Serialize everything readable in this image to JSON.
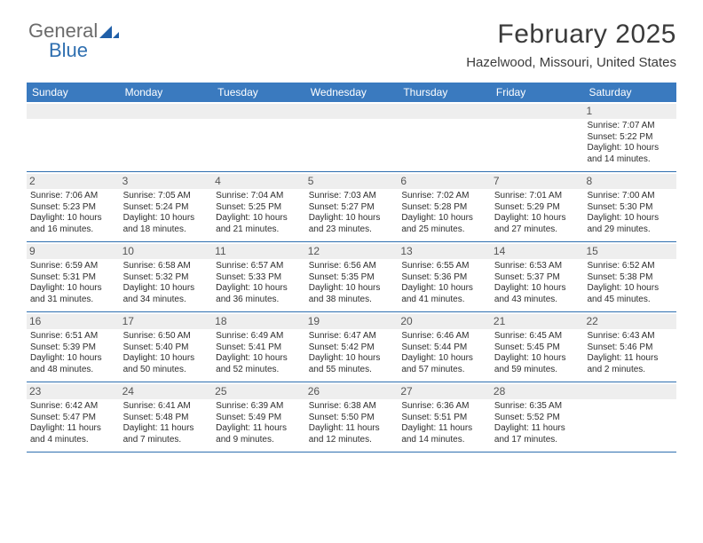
{
  "logo": {
    "part1": "General",
    "part2": "Blue"
  },
  "title": "February 2025",
  "location": "Hazelwood, Missouri, United States",
  "colors": {
    "header_bg": "#3a7abf",
    "header_text": "#ffffff",
    "daynum_bg": "#eeeeee",
    "week_border": "#2f6fb0",
    "logo_gray": "#6b6b6b",
    "logo_blue": "#2f6fb0"
  },
  "days_of_week": [
    "Sunday",
    "Monday",
    "Tuesday",
    "Wednesday",
    "Thursday",
    "Friday",
    "Saturday"
  ],
  "weeks": [
    [
      null,
      null,
      null,
      null,
      null,
      null,
      {
        "n": "1",
        "sunrise": "Sunrise: 7:07 AM",
        "sunset": "Sunset: 5:22 PM",
        "daylight": "Daylight: 10 hours and 14 minutes."
      }
    ],
    [
      {
        "n": "2",
        "sunrise": "Sunrise: 7:06 AM",
        "sunset": "Sunset: 5:23 PM",
        "daylight": "Daylight: 10 hours and 16 minutes."
      },
      {
        "n": "3",
        "sunrise": "Sunrise: 7:05 AM",
        "sunset": "Sunset: 5:24 PM",
        "daylight": "Daylight: 10 hours and 18 minutes."
      },
      {
        "n": "4",
        "sunrise": "Sunrise: 7:04 AM",
        "sunset": "Sunset: 5:25 PM",
        "daylight": "Daylight: 10 hours and 21 minutes."
      },
      {
        "n": "5",
        "sunrise": "Sunrise: 7:03 AM",
        "sunset": "Sunset: 5:27 PM",
        "daylight": "Daylight: 10 hours and 23 minutes."
      },
      {
        "n": "6",
        "sunrise": "Sunrise: 7:02 AM",
        "sunset": "Sunset: 5:28 PM",
        "daylight": "Daylight: 10 hours and 25 minutes."
      },
      {
        "n": "7",
        "sunrise": "Sunrise: 7:01 AM",
        "sunset": "Sunset: 5:29 PM",
        "daylight": "Daylight: 10 hours and 27 minutes."
      },
      {
        "n": "8",
        "sunrise": "Sunrise: 7:00 AM",
        "sunset": "Sunset: 5:30 PM",
        "daylight": "Daylight: 10 hours and 29 minutes."
      }
    ],
    [
      {
        "n": "9",
        "sunrise": "Sunrise: 6:59 AM",
        "sunset": "Sunset: 5:31 PM",
        "daylight": "Daylight: 10 hours and 31 minutes."
      },
      {
        "n": "10",
        "sunrise": "Sunrise: 6:58 AM",
        "sunset": "Sunset: 5:32 PM",
        "daylight": "Daylight: 10 hours and 34 minutes."
      },
      {
        "n": "11",
        "sunrise": "Sunrise: 6:57 AM",
        "sunset": "Sunset: 5:33 PM",
        "daylight": "Daylight: 10 hours and 36 minutes."
      },
      {
        "n": "12",
        "sunrise": "Sunrise: 6:56 AM",
        "sunset": "Sunset: 5:35 PM",
        "daylight": "Daylight: 10 hours and 38 minutes."
      },
      {
        "n": "13",
        "sunrise": "Sunrise: 6:55 AM",
        "sunset": "Sunset: 5:36 PM",
        "daylight": "Daylight: 10 hours and 41 minutes."
      },
      {
        "n": "14",
        "sunrise": "Sunrise: 6:53 AM",
        "sunset": "Sunset: 5:37 PM",
        "daylight": "Daylight: 10 hours and 43 minutes."
      },
      {
        "n": "15",
        "sunrise": "Sunrise: 6:52 AM",
        "sunset": "Sunset: 5:38 PM",
        "daylight": "Daylight: 10 hours and 45 minutes."
      }
    ],
    [
      {
        "n": "16",
        "sunrise": "Sunrise: 6:51 AM",
        "sunset": "Sunset: 5:39 PM",
        "daylight": "Daylight: 10 hours and 48 minutes."
      },
      {
        "n": "17",
        "sunrise": "Sunrise: 6:50 AM",
        "sunset": "Sunset: 5:40 PM",
        "daylight": "Daylight: 10 hours and 50 minutes."
      },
      {
        "n": "18",
        "sunrise": "Sunrise: 6:49 AM",
        "sunset": "Sunset: 5:41 PM",
        "daylight": "Daylight: 10 hours and 52 minutes."
      },
      {
        "n": "19",
        "sunrise": "Sunrise: 6:47 AM",
        "sunset": "Sunset: 5:42 PM",
        "daylight": "Daylight: 10 hours and 55 minutes."
      },
      {
        "n": "20",
        "sunrise": "Sunrise: 6:46 AM",
        "sunset": "Sunset: 5:44 PM",
        "daylight": "Daylight: 10 hours and 57 minutes."
      },
      {
        "n": "21",
        "sunrise": "Sunrise: 6:45 AM",
        "sunset": "Sunset: 5:45 PM",
        "daylight": "Daylight: 10 hours and 59 minutes."
      },
      {
        "n": "22",
        "sunrise": "Sunrise: 6:43 AM",
        "sunset": "Sunset: 5:46 PM",
        "daylight": "Daylight: 11 hours and 2 minutes."
      }
    ],
    [
      {
        "n": "23",
        "sunrise": "Sunrise: 6:42 AM",
        "sunset": "Sunset: 5:47 PM",
        "daylight": "Daylight: 11 hours and 4 minutes."
      },
      {
        "n": "24",
        "sunrise": "Sunrise: 6:41 AM",
        "sunset": "Sunset: 5:48 PM",
        "daylight": "Daylight: 11 hours and 7 minutes."
      },
      {
        "n": "25",
        "sunrise": "Sunrise: 6:39 AM",
        "sunset": "Sunset: 5:49 PM",
        "daylight": "Daylight: 11 hours and 9 minutes."
      },
      {
        "n": "26",
        "sunrise": "Sunrise: 6:38 AM",
        "sunset": "Sunset: 5:50 PM",
        "daylight": "Daylight: 11 hours and 12 minutes."
      },
      {
        "n": "27",
        "sunrise": "Sunrise: 6:36 AM",
        "sunset": "Sunset: 5:51 PM",
        "daylight": "Daylight: 11 hours and 14 minutes."
      },
      {
        "n": "28",
        "sunrise": "Sunrise: 6:35 AM",
        "sunset": "Sunset: 5:52 PM",
        "daylight": "Daylight: 11 hours and 17 minutes."
      },
      null
    ]
  ]
}
